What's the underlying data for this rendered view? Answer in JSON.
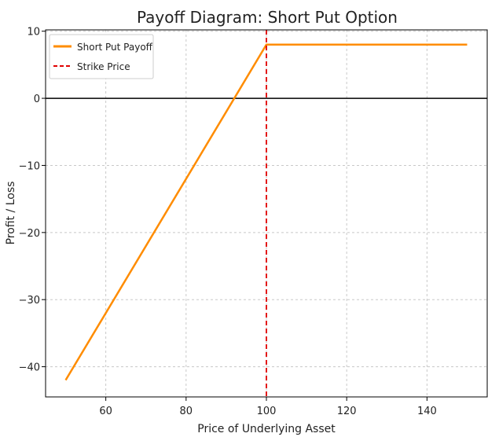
{
  "chart_data": {
    "type": "line",
    "title": "Payoff Diagram: Short Put Option",
    "xlabel": "Price of Underlying Asset",
    "ylabel": "Profit / Loss",
    "xlim": [
      45,
      155
    ],
    "ylim": [
      -44.5,
      10.2
    ],
    "xticks": [
      60,
      80,
      100,
      120,
      140
    ],
    "yticks": [
      10,
      0,
      -10,
      -20,
      -30,
      -40
    ],
    "grid": true,
    "legend_position": "top-left",
    "series": [
      {
        "name": "Short Put Payoff",
        "color": "#ff8c00",
        "style": "solid",
        "points": [
          [
            50,
            -42
          ],
          [
            100,
            8
          ],
          [
            150,
            8
          ]
        ]
      },
      {
        "name": "Strike Price",
        "color": "#e00000",
        "style": "dashed",
        "vertical_x": 100
      }
    ],
    "zero_line": {
      "y": 0,
      "color": "#000000"
    }
  }
}
